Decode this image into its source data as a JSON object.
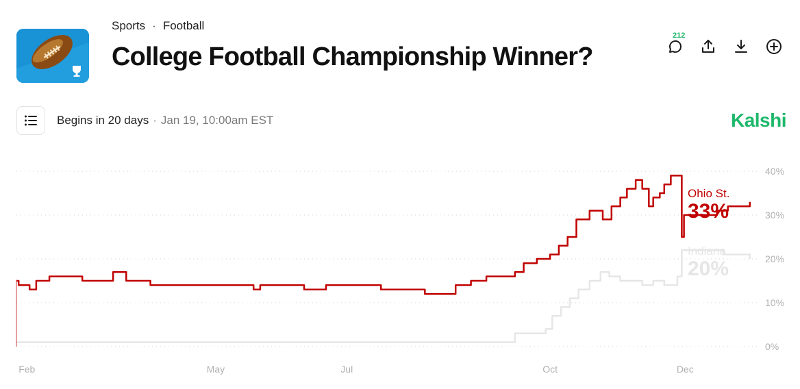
{
  "header": {
    "breadcrumbs": [
      "Sports",
      "Football"
    ],
    "breadcrumb_separator": "·",
    "title": "College Football Championship Winner?",
    "comment_count": "212"
  },
  "icons": {
    "logo": "football-trophy-icon",
    "comment": "comment-icon",
    "share": "share-icon",
    "download": "download-icon",
    "add": "plus-circle-icon",
    "menu": "list-icon"
  },
  "status": {
    "begins": "Begins in 20 days",
    "separator": "·",
    "date": "Jan 19, 10:00am EST"
  },
  "brand": "Kalshi",
  "colors": {
    "brand": "#1db86a",
    "ohio_state": "#c00000",
    "indiana": "#e6e6e6",
    "grid": "#d0d0d0",
    "tick_text": "#b0b0b0"
  },
  "chart_data": {
    "type": "line",
    "title": "",
    "xlabel": "",
    "ylabel": "",
    "x_ticks": [
      "Feb",
      "May",
      "Jul",
      "Oct",
      "Dec"
    ],
    "x_tick_dates": [
      "2024-02-01",
      "2024-05-01",
      "2024-07-01",
      "2024-10-01",
      "2024-12-01"
    ],
    "y_ticks": [
      "0%",
      "10%",
      "20%",
      "30%",
      "40%"
    ],
    "ylim": [
      0,
      40
    ],
    "grid": "horizontal-dotted",
    "series": [
      {
        "name": "Ohio St.",
        "label_value": "33%",
        "color": "#c00000",
        "points": [
          [
            "2024-01-31",
            15
          ],
          [
            "2024-02-01",
            14
          ],
          [
            "2024-02-06",
            13
          ],
          [
            "2024-02-09",
            15
          ],
          [
            "2024-02-15",
            16
          ],
          [
            "2024-03-01",
            15
          ],
          [
            "2024-03-10",
            15
          ],
          [
            "2024-03-15",
            17
          ],
          [
            "2024-03-21",
            15
          ],
          [
            "2024-03-28",
            15
          ],
          [
            "2024-04-01",
            14
          ],
          [
            "2024-04-15",
            14
          ],
          [
            "2024-05-01",
            14
          ],
          [
            "2024-05-15",
            14
          ],
          [
            "2024-05-18",
            13
          ],
          [
            "2024-05-21",
            14
          ],
          [
            "2024-06-01",
            14
          ],
          [
            "2024-06-10",
            13
          ],
          [
            "2024-06-20",
            14
          ],
          [
            "2024-07-01",
            14
          ],
          [
            "2024-07-15",
            13
          ],
          [
            "2024-07-25",
            13
          ],
          [
            "2024-08-04",
            12
          ],
          [
            "2024-08-10",
            12
          ],
          [
            "2024-08-18",
            14
          ],
          [
            "2024-08-25",
            15
          ],
          [
            "2024-09-01",
            16
          ],
          [
            "2024-09-08",
            16
          ],
          [
            "2024-09-14",
            17
          ],
          [
            "2024-09-18",
            19
          ],
          [
            "2024-09-24",
            20
          ],
          [
            "2024-09-30",
            21
          ],
          [
            "2024-10-04",
            23
          ],
          [
            "2024-10-08",
            25
          ],
          [
            "2024-10-12",
            29
          ],
          [
            "2024-10-18",
            31
          ],
          [
            "2024-10-24",
            29
          ],
          [
            "2024-10-28",
            32
          ],
          [
            "2024-11-01",
            34
          ],
          [
            "2024-11-04",
            36
          ],
          [
            "2024-11-08",
            38
          ],
          [
            "2024-11-11",
            36
          ],
          [
            "2024-11-14",
            32
          ],
          [
            "2024-11-16",
            34
          ],
          [
            "2024-11-19",
            35
          ],
          [
            "2024-11-21",
            37
          ],
          [
            "2024-11-24",
            39
          ],
          [
            "2024-11-28",
            39
          ],
          [
            "2024-11-29",
            25
          ],
          [
            "2024-11-30",
            30
          ],
          [
            "2024-12-05",
            30
          ],
          [
            "2024-12-10",
            30
          ],
          [
            "2024-12-15",
            31
          ],
          [
            "2024-12-20",
            32
          ],
          [
            "2024-12-25",
            32
          ],
          [
            "2024-12-30",
            33
          ]
        ]
      },
      {
        "name": "Indiana",
        "label_value": "20%",
        "color": "#e6e6e6",
        "points": [
          [
            "2024-01-31",
            1
          ],
          [
            "2024-02-15",
            1
          ],
          [
            "2024-03-15",
            1
          ],
          [
            "2024-04-15",
            1
          ],
          [
            "2024-05-15",
            1
          ],
          [
            "2024-06-15",
            1
          ],
          [
            "2024-07-15",
            1
          ],
          [
            "2024-08-20",
            1
          ],
          [
            "2024-09-13",
            1
          ],
          [
            "2024-09-14",
            3
          ],
          [
            "2024-09-20",
            3
          ],
          [
            "2024-09-28",
            4
          ],
          [
            "2024-10-01",
            7
          ],
          [
            "2024-10-05",
            9
          ],
          [
            "2024-10-09",
            11
          ],
          [
            "2024-10-13",
            13
          ],
          [
            "2024-10-18",
            15
          ],
          [
            "2024-10-23",
            17
          ],
          [
            "2024-10-27",
            16
          ],
          [
            "2024-11-01",
            15
          ],
          [
            "2024-11-06",
            15
          ],
          [
            "2024-11-11",
            14
          ],
          [
            "2024-11-16",
            15
          ],
          [
            "2024-11-21",
            14
          ],
          [
            "2024-11-27",
            16
          ],
          [
            "2024-11-29",
            22
          ],
          [
            "2024-12-05",
            22
          ],
          [
            "2024-12-12",
            22
          ],
          [
            "2024-12-18",
            21
          ],
          [
            "2024-12-24",
            21
          ],
          [
            "2024-12-30",
            20
          ]
        ]
      }
    ]
  }
}
